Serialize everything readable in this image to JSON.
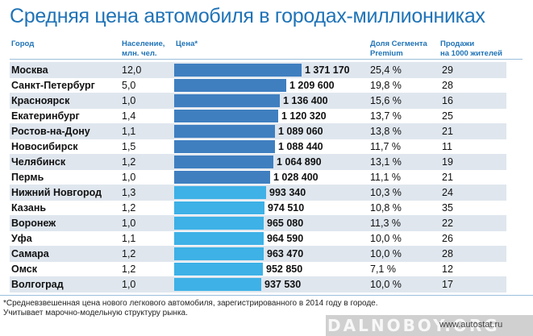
{
  "chart_data": {
    "type": "bar",
    "title": "Средняя цена автомобиля в городах-миллионниках",
    "columns": {
      "city": "Город",
      "population": "Население,\nмлн. чел.",
      "price": "Цена*",
      "premium": "Доля Сегмента\nPremium",
      "sales": "Продажи\nна 1000 жителей"
    },
    "rows": [
      {
        "city": "Москва",
        "population": "12,0",
        "price": 1371170,
        "price_label": "1 371 170",
        "premium": "25,4 %",
        "sales": "29"
      },
      {
        "city": "Санкт-Петербург",
        "population": "5,0",
        "price": 1209600,
        "price_label": "1 209 600",
        "premium": "19,8 %",
        "sales": "28"
      },
      {
        "city": "Красноярск",
        "population": "1,0",
        "price": 1136400,
        "price_label": "1 136 400",
        "premium": "15,6 %",
        "sales": "16"
      },
      {
        "city": "Екатеринбург",
        "population": "1,4",
        "price": 1120320,
        "price_label": "1 120 320",
        "premium": "13,7 %",
        "sales": "25"
      },
      {
        "city": "Ростов-на-Дону",
        "population": "1,1",
        "price": 1089060,
        "price_label": "1 089 060",
        "premium": "13,8 %",
        "sales": "21"
      },
      {
        "city": "Новосибирск",
        "population": "1,5",
        "price": 1088440,
        "price_label": "1 088 440",
        "premium": "11,7 %",
        "sales": "11"
      },
      {
        "city": "Челябинск",
        "population": "1,2",
        "price": 1064890,
        "price_label": "1 064 890",
        "premium": "13,1 %",
        "sales": "19"
      },
      {
        "city": "Пермь",
        "population": "1,0",
        "price": 1028400,
        "price_label": "1 028 400",
        "premium": "11,1 %",
        "sales": "21"
      },
      {
        "city": "Нижний Новгород",
        "population": "1,3",
        "price": 993340,
        "price_label": "993 340",
        "premium": "10,3 %",
        "sales": "24"
      },
      {
        "city": "Казань",
        "population": "1,2",
        "price": 974510,
        "price_label": "974 510",
        "premium": "10,8 %",
        "sales": "35"
      },
      {
        "city": "Воронеж",
        "population": "1,0",
        "price": 965080,
        "price_label": "965 080",
        "premium": "11,3 %",
        "sales": "22"
      },
      {
        "city": "Уфа",
        "population": "1,1",
        "price": 964590,
        "price_label": "964 590",
        "premium": "10,0 %",
        "sales": "26"
      },
      {
        "city": "Самара",
        "population": "1,2",
        "price": 963470,
        "price_label": "963 470",
        "premium": "10,0 %",
        "sales": "28"
      },
      {
        "city": "Омск",
        "population": "1,2",
        "price": 952850,
        "price_label": "952 850",
        "premium": "7,1 %",
        "sales": "12"
      },
      {
        "city": "Волгоград",
        "population": "1,0",
        "price": 937530,
        "price_label": "937 530",
        "premium": "10,0 %",
        "sales": "17"
      }
    ],
    "footnote": "*Средневзвешенная цена нового легкового автомобиля, зарегистрированного в 2014 году в городе.\nУчитывает марочно-модельную структуру рынка.",
    "colors": {
      "bar_dark": "#3f7fc0",
      "bar_light": "#3eb1e6",
      "title": "#1f73b7",
      "row_shade": "#dfe6ee"
    }
  },
  "watermark": {
    "text": "DALNOBOY.ORG",
    "site": "www.autostat.ru"
  }
}
